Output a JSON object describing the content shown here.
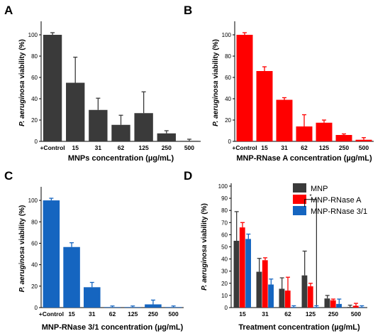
{
  "chart_data": [
    {
      "panel": "A",
      "type": "bar",
      "ylabel_parts": [
        "P. aeruginosa",
        " viability (%)"
      ],
      "xlabel": "MNPs concentration (µg/mL)",
      "categories": [
        "+Control",
        "15",
        "31",
        "62",
        "125",
        "250",
        "500"
      ],
      "yticks": [
        0,
        20,
        40,
        60,
        80,
        100
      ],
      "ylim": [
        0,
        110
      ],
      "color": "#3a3a3a",
      "series": [
        {
          "values": [
            100,
            55,
            29.5,
            15.5,
            26.5,
            7.5,
            0.5
          ],
          "errors": [
            2,
            24,
            11,
            9,
            20,
            2.5,
            1.5
          ]
        }
      ]
    },
    {
      "panel": "B",
      "type": "bar",
      "ylabel_parts": [
        "P. aeruginosa",
        " viability (%)"
      ],
      "xlabel": "MNP-RNase A concentration (µg/mL)",
      "categories": [
        "+Control",
        "15",
        "31",
        "62",
        "125",
        "250",
        "500"
      ],
      "yticks": [
        0,
        20,
        40,
        60,
        80,
        100
      ],
      "ylim": [
        0,
        110
      ],
      "color": "#ff0000",
      "series": [
        {
          "values": [
            100,
            66,
            39,
            14,
            17.5,
            6,
            1.5
          ],
          "errors": [
            2,
            4,
            2,
            11,
            2.5,
            1,
            2
          ]
        }
      ]
    },
    {
      "panel": "C",
      "type": "bar",
      "ylabel_parts": [
        "P. aeruginosa",
        " viability (%)"
      ],
      "xlabel": "MNP-RNase 3/1 concentration (µg/mL)",
      "categories": [
        "+Control",
        "15",
        "31",
        "62",
        "125",
        "250",
        "500"
      ],
      "yticks": [
        0,
        20,
        40,
        60,
        80,
        100
      ],
      "ylim": [
        0,
        110
      ],
      "color": "#1565c0",
      "series": [
        {
          "values": [
            100,
            56.5,
            19,
            0.5,
            0.5,
            3,
            0.5
          ],
          "errors": [
            2,
            4,
            4.5,
            1,
            1,
            4,
            1
          ]
        }
      ]
    },
    {
      "panel": "D",
      "type": "bar",
      "ylabel_parts": [
        "P. aeruginosa",
        " viability (%)"
      ],
      "xlabel": "Treatment concentration (µg/mL)",
      "categories": [
        "15",
        "31",
        "62",
        "125",
        "250",
        "500"
      ],
      "yticks": [
        0,
        10,
        20,
        30,
        40,
        50,
        60,
        70,
        80,
        90,
        100
      ],
      "ylim": [
        0,
        100
      ],
      "legend_position": "top-right",
      "annotation": "*",
      "series": [
        {
          "name": "MNP",
          "color": "#3a3a3a",
          "values": [
            55,
            29.5,
            15.5,
            26.5,
            7.5,
            0.5
          ],
          "errors": [
            24,
            11,
            9,
            20,
            2.5,
            1.5
          ]
        },
        {
          "name": "MNP-RNase A",
          "color": "#ff0000",
          "values": [
            66,
            39,
            14,
            17.5,
            6,
            1.5
          ],
          "errors": [
            4,
            2,
            11,
            2.5,
            1,
            2
          ]
        },
        {
          "name": "MNP-RNase 3/1",
          "color": "#1565c0",
          "values": [
            56.5,
            19,
            0.5,
            0.5,
            3,
            0.5
          ],
          "errors": [
            4,
            4.5,
            1,
            1,
            4,
            1
          ]
        }
      ]
    }
  ]
}
